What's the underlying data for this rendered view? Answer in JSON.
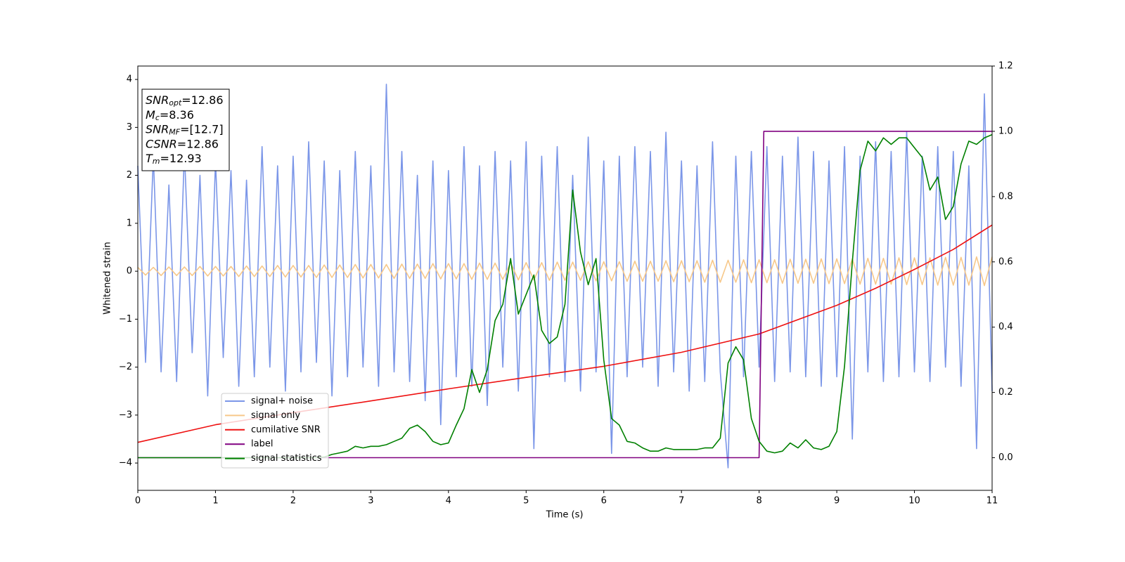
{
  "chart_data": {
    "type": "line",
    "xlabel": "Time (s)",
    "ylabel": "Whitened strain",
    "xlim": [
      0,
      11
    ],
    "xticks": [
      0,
      1,
      2,
      3,
      4,
      5,
      6,
      7,
      8,
      9,
      10,
      11
    ],
    "ylim": [
      -4.57,
      4.28
    ],
    "yticks": [
      {
        "value": -4,
        "label": "−4"
      },
      {
        "value": -3,
        "label": "−3"
      },
      {
        "value": -2,
        "label": "−2"
      },
      {
        "value": -1,
        "label": "−1"
      },
      0,
      1,
      2,
      3,
      4
    ],
    "y2lim": [
      -0.1,
      1.2
    ],
    "y2ticks": [
      {
        "value": 0,
        "label": "0.0"
      },
      0.2,
      0.4,
      0.6,
      0.8,
      {
        "value": 1,
        "label": "1.0"
      },
      1.2
    ],
    "legend": "lower left",
    "annotations": [
      {
        "main": "SNR",
        "sub": "opt",
        "rest": "=12.86"
      },
      {
        "main": "M",
        "sub": "c",
        "rest": "=8.36"
      },
      {
        "main": "SNR",
        "sub": "MF",
        "rest": "=[12.7]"
      },
      {
        "main": "CSNR",
        "rest": "=12.86"
      },
      {
        "main": "T",
        "sub": "m",
        "rest": "=12.93"
      }
    ],
    "x": [
      0,
      0.1,
      0.2,
      0.3,
      0.4,
      0.5,
      0.6,
      0.7,
      0.8,
      0.9,
      1,
      1.1,
      1.2,
      1.3,
      1.4,
      1.5,
      1.6,
      1.7,
      1.8,
      1.9,
      2,
      2.1,
      2.2,
      2.3,
      2.4,
      2.5,
      2.6,
      2.7,
      2.8,
      2.9,
      3,
      3.1,
      3.2,
      3.3,
      3.4,
      3.5,
      3.6,
      3.7,
      3.8,
      3.9,
      4,
      4.1,
      4.2,
      4.3,
      4.4,
      4.5,
      4.6,
      4.7,
      4.8,
      4.9,
      5,
      5.1,
      5.2,
      5.3,
      5.4,
      5.5,
      5.6,
      5.7,
      5.8,
      5.9,
      6,
      6.1,
      6.2,
      6.3,
      6.4,
      6.5,
      6.6,
      6.7,
      6.8,
      6.9,
      7,
      7.1,
      7.2,
      7.3,
      7.4,
      7.5,
      7.6,
      7.7,
      7.8,
      7.9,
      8,
      8.1,
      8.2,
      8.3,
      8.4,
      8.5,
      8.6,
      8.7,
      8.8,
      8.9,
      9,
      9.1,
      9.2,
      9.3,
      9.4,
      9.5,
      9.6,
      9.7,
      9.8,
      9.9,
      10,
      10.1,
      10.2,
      10.3,
      10.4,
      10.5,
      10.6,
      10.7,
      10.8,
      10.9,
      11
    ],
    "series": [
      {
        "name": "signal+ noise",
        "color": "#7b96e8",
        "axis": "y",
        "values": [
          2.2,
          -1.9,
          2.4,
          -2.1,
          1.8,
          -2.3,
          2.5,
          -1.7,
          2.0,
          -2.6,
          2.3,
          -1.8,
          2.1,
          -2.4,
          1.9,
          -2.2,
          2.6,
          -2.0,
          2.2,
          -2.5,
          2.4,
          -2.1,
          2.7,
          -1.9,
          2.3,
          -2.6,
          2.1,
          -2.2,
          2.5,
          -2.0,
          2.2,
          -2.4,
          3.9,
          -2.1,
          2.5,
          -2.3,
          2.0,
          -2.7,
          2.3,
          -3.2,
          2.1,
          -2.2,
          2.6,
          -2.4,
          2.2,
          -2.8,
          2.5,
          -2.0,
          2.3,
          -2.5,
          2.7,
          -3.7,
          2.4,
          -2.2,
          2.6,
          -2.3,
          2.0,
          -2.5,
          2.8,
          -2.1,
          2.3,
          -3.8,
          2.4,
          -2.2,
          2.6,
          -2.0,
          2.5,
          -2.4,
          2.9,
          -2.1,
          2.3,
          -2.5,
          2.2,
          -2.3,
          2.7,
          -2.1,
          -4.1,
          2.4,
          -2.2,
          2.5,
          -2.0,
          2.6,
          -2.3,
          2.4,
          -2.1,
          2.8,
          -2.2,
          2.5,
          -2.4,
          2.3,
          -2.2,
          2.6,
          -3.5,
          2.4,
          -2.1,
          2.7,
          -2.3,
          2.5,
          -2.2,
          2.9,
          -2.1,
          2.4,
          -2.3,
          2.6,
          -2.0,
          2.5,
          -2.4,
          2.2,
          -3.7,
          3.7,
          -2.5
        ]
      },
      {
        "name": "signal only",
        "color": "#f7c88a",
        "axis": "y",
        "values": [
          0.08,
          -0.08,
          0.08,
          -0.09,
          0.09,
          -0.09,
          0.09,
          -0.09,
          0.1,
          -0.1,
          0.1,
          -0.1,
          0.1,
          -0.11,
          0.11,
          -0.11,
          0.11,
          -0.11,
          0.12,
          -0.12,
          0.12,
          -0.12,
          0.12,
          -0.13,
          0.13,
          -0.13,
          0.13,
          -0.13,
          0.14,
          -0.14,
          0.14,
          -0.14,
          0.14,
          -0.15,
          0.15,
          -0.15,
          0.15,
          -0.15,
          0.16,
          -0.16,
          0.16,
          -0.16,
          0.16,
          -0.17,
          0.17,
          -0.17,
          0.17,
          -0.17,
          0.18,
          -0.18,
          0.18,
          -0.18,
          0.18,
          -0.19,
          0.19,
          -0.19,
          0.19,
          -0.19,
          0.2,
          -0.2,
          0.2,
          -0.2,
          0.2,
          -0.21,
          0.21,
          -0.21,
          0.21,
          -0.21,
          0.22,
          -0.22,
          0.22,
          -0.22,
          0.22,
          -0.23,
          0.23,
          -0.23,
          0.23,
          -0.23,
          0.24,
          -0.24,
          0.24,
          -0.24,
          0.24,
          -0.25,
          0.25,
          -0.25,
          0.25,
          -0.25,
          0.26,
          -0.26,
          0.26,
          -0.26,
          0.26,
          -0.27,
          0.27,
          -0.27,
          0.27,
          -0.27,
          0.28,
          -0.28,
          0.28,
          -0.28,
          0.28,
          -0.29,
          0.29,
          -0.29,
          0.29,
          -0.29,
          0.3,
          -0.3,
          0.3
        ]
      },
      {
        "name": "cumilative SNR",
        "color": "#ee1111",
        "axis": "y2",
        "x": [
          0,
          1,
          2,
          3,
          4,
          5,
          6,
          7,
          8,
          9,
          9.5,
          10,
          10.5,
          11
        ],
        "values": [
          0.047,
          0.101,
          0.138,
          0.174,
          0.211,
          0.246,
          0.28,
          0.323,
          0.379,
          0.467,
          0.519,
          0.577,
          0.638,
          0.713
        ]
      },
      {
        "name": "label",
        "color": "#800080",
        "axis": "y2",
        "x": [
          0,
          8,
          8.06,
          11
        ],
        "values": [
          0,
          0,
          1,
          1
        ]
      },
      {
        "name": "signal statistics",
        "color": "#008000",
        "axis": "y2",
        "values": [
          0,
          0,
          0,
          0,
          0,
          0,
          0,
          0,
          0,
          0,
          0,
          0,
          0,
          0,
          0,
          0,
          0,
          0,
          0,
          0,
          0,
          0,
          0,
          0,
          0.002,
          0.01,
          0.015,
          0.02,
          0.035,
          0.03,
          0.035,
          0.035,
          0.04,
          0.05,
          0.06,
          0.09,
          0.1,
          0.08,
          0.05,
          0.04,
          0.045,
          0.1,
          0.15,
          0.27,
          0.2,
          0.27,
          0.42,
          0.47,
          0.61,
          0.44,
          0.5,
          0.56,
          0.39,
          0.35,
          0.37,
          0.47,
          0.82,
          0.63,
          0.53,
          0.61,
          0.3,
          0.12,
          0.1,
          0.05,
          0.045,
          0.03,
          0.02,
          0.02,
          0.03,
          0.025,
          0.025,
          0.025,
          0.025,
          0.03,
          0.03,
          0.06,
          0.29,
          0.34,
          0.3,
          0.12,
          0.05,
          0.02,
          0.015,
          0.02,
          0.045,
          0.03,
          0.055,
          0.03,
          0.025,
          0.035,
          0.08,
          0.28,
          0.6,
          0.88,
          0.97,
          0.94,
          0.98,
          0.96,
          0.98,
          0.98,
          0.95,
          0.92,
          0.82,
          0.86,
          0.73,
          0.77,
          0.9,
          0.97,
          0.96,
          0.98,
          0.99
        ]
      }
    ]
  }
}
